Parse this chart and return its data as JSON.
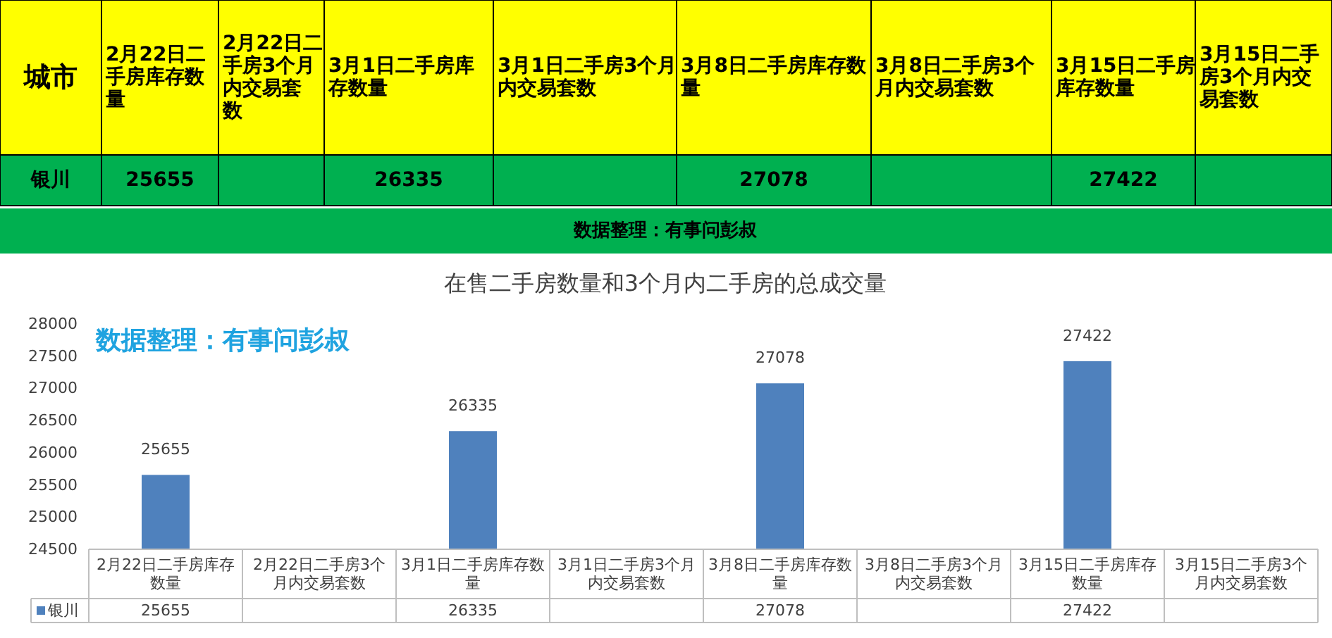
{
  "chart_data": {
    "type": "bar",
    "title": "在售二手房数量和3个月内二手房的总成交量",
    "legend_title": "城市",
    "categories": [
      "2月22日二手房库存数量",
      "2月22日二手房3个月内交易套数",
      "3月1日二手房库存数量",
      "3月1日二手房3个月内交易套数",
      "3月8日二手房库存数量",
      "3月8日二手房3个月内交易套数",
      "3月15日二手房库存数量",
      "3月15日二手房3个月内交易套数"
    ],
    "series": [
      {
        "name": "银川",
        "color": "#4f81bd",
        "values": [
          25655,
          null,
          26335,
          null,
          27078,
          null,
          27422,
          null
        ],
        "value_labels": [
          "25655",
          null,
          "26335",
          null,
          "27078",
          null,
          "27422",
          null
        ]
      }
    ],
    "ylim": [
      24500,
      28000
    ],
    "yticks": [
      24500,
      25000,
      25500,
      26000,
      26500,
      27000,
      27500,
      28000
    ],
    "data_labels": true,
    "legend": "bottom",
    "annotations": [
      "数据整理：有事问彭叔",
      "数据整理：有事问彭叔"
    ]
  }
}
